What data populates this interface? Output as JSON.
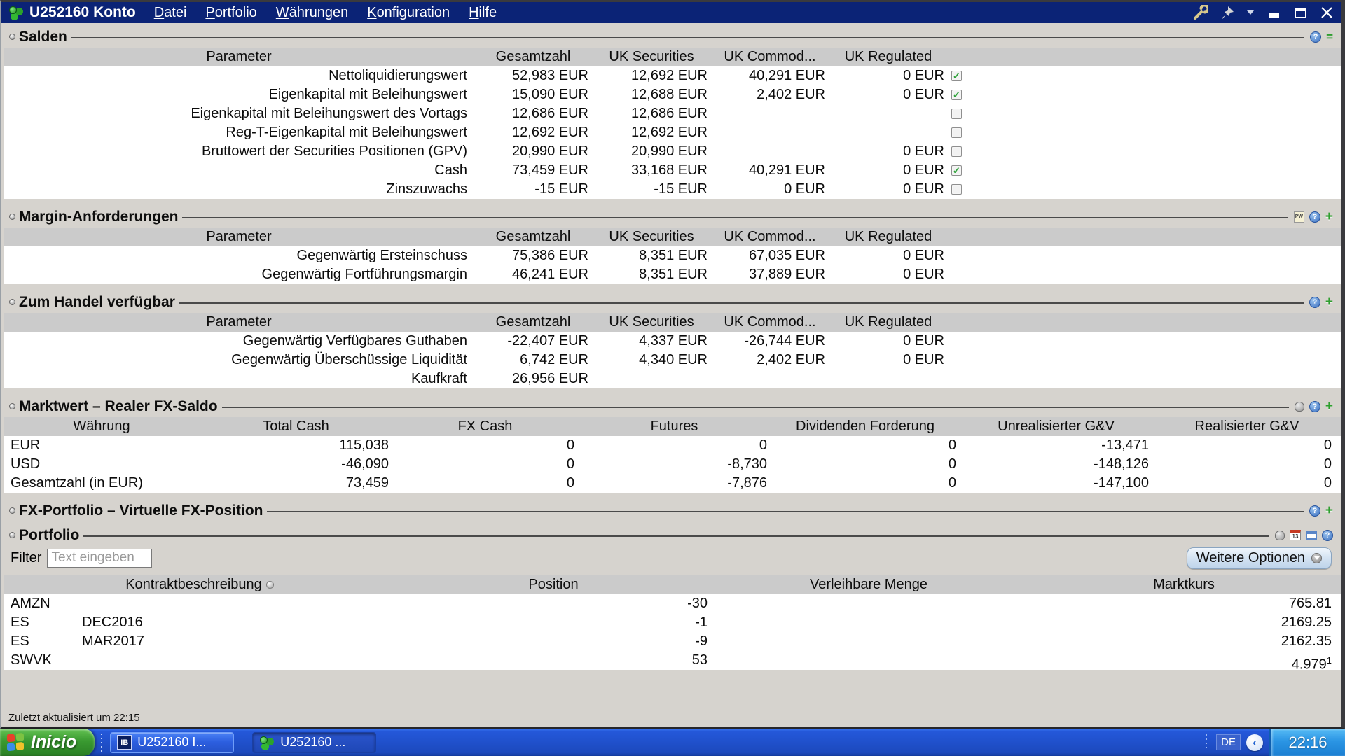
{
  "colors": {
    "titlebar": "#0b2376",
    "taskbar_blue": "#1c49bd",
    "start_green": "#3a9a31",
    "check_green": "#2fa33a",
    "header_gray": "#cbcbcb"
  },
  "window": {
    "title": "U252160 Konto",
    "icon": "coins",
    "menus": [
      {
        "label": "Datei"
      },
      {
        "label": "Portfolio"
      },
      {
        "label": "Währungen"
      },
      {
        "label": "Konfiguration"
      },
      {
        "label": "Hilfe"
      }
    ],
    "controls": [
      "wrench",
      "pin",
      "caret",
      "minimize",
      "maximize",
      "close"
    ]
  },
  "sections": {
    "salden": {
      "title": "Salden",
      "icons": [
        "help",
        "collapse"
      ],
      "headers": [
        "Parameter",
        "Gesamtzahl",
        "UK Securities",
        "UK Commod...",
        "UK Regulated"
      ],
      "rows": [
        {
          "param": "Nettoliquidierungswert",
          "values": [
            "52,983 EUR",
            "12,692 EUR",
            "40,291 EUR",
            "0 EUR"
          ],
          "checked": true
        },
        {
          "param": "Eigenkapital mit Beleihungswert",
          "values": [
            "15,090 EUR",
            "12,688 EUR",
            "2,402 EUR",
            "0 EUR"
          ],
          "checked": true
        },
        {
          "param": "Eigenkapital mit Beleihungswert des Vortags",
          "values": [
            "12,686 EUR",
            "12,686 EUR",
            "",
            ""
          ],
          "checked": false
        },
        {
          "param": "Reg-T-Eigenkapital mit Beleihungswert",
          "values": [
            "12,692 EUR",
            "12,692 EUR",
            "",
            ""
          ],
          "checked": false
        },
        {
          "param": "Bruttowert der Securities Positionen (GPV)",
          "values": [
            "20,990 EUR",
            "20,990 EUR",
            "",
            "0 EUR"
          ],
          "checked": false
        },
        {
          "param": "Cash",
          "values": [
            "73,459 EUR",
            "33,168 EUR",
            "40,291 EUR",
            "0 EUR"
          ],
          "checked": true
        },
        {
          "param": "Zinszuwachs",
          "values": [
            "-15 EUR",
            "-15 EUR",
            "0 EUR",
            "0 EUR"
          ],
          "checked": false
        }
      ]
    },
    "margin": {
      "title": "Margin-Anforderungen",
      "icons": [
        "report",
        "help",
        "add"
      ],
      "headers": [
        "Parameter",
        "Gesamtzahl",
        "UK Securities",
        "UK Commod...",
        "UK Regulated"
      ],
      "rows": [
        {
          "param": "Gegenwärtig Ersteinschuss",
          "values": [
            "75,386 EUR",
            "8,351 EUR",
            "67,035 EUR",
            "0 EUR"
          ],
          "checked": null
        },
        {
          "param": "Gegenwärtig Fortführungsmargin",
          "values": [
            "46,241 EUR",
            "8,351 EUR",
            "37,889 EUR",
            "0 EUR"
          ],
          "checked": null
        }
      ]
    },
    "handel": {
      "title": "Zum Handel verfügbar",
      "icons": [
        "help",
        "add"
      ],
      "headers": [
        "Parameter",
        "Gesamtzahl",
        "UK Securities",
        "UK Commod...",
        "UK Regulated"
      ],
      "rows": [
        {
          "param": "Gegenwärtig Verfügbares Guthaben",
          "values": [
            "-22,407 EUR",
            "4,337 EUR",
            "-26,744 EUR",
            "0 EUR"
          ],
          "checked": null
        },
        {
          "param": "Gegenwärtig Überschüssige Liquidität",
          "values": [
            "6,742 EUR",
            "4,340 EUR",
            "2,402 EUR",
            "0 EUR"
          ],
          "checked": null
        },
        {
          "param": "Kaufkraft",
          "values": [
            "26,956 EUR",
            "",
            "",
            ""
          ],
          "checked": null
        }
      ]
    },
    "marktwert": {
      "title": "Marktwert – Realer FX-Saldo",
      "icons": [
        "hand",
        "help",
        "add"
      ],
      "headers": [
        "Währung",
        "Total Cash",
        "FX Cash",
        "Futures",
        "Dividenden Forderung",
        "Unrealisierter G&V",
        "Realisierter G&V"
      ],
      "rows": [
        {
          "currency": "EUR",
          "values": [
            "115,038",
            "0",
            "0",
            "0",
            "-13,471",
            "0"
          ]
        },
        {
          "currency": "USD",
          "values": [
            "-46,090",
            "0",
            "-8,730",
            "0",
            "-148,126",
            "0"
          ]
        },
        {
          "currency": "Gesamtzahl (in EUR)",
          "values": [
            "73,459",
            "0",
            "-7,876",
            "0",
            "-147,100",
            "0"
          ]
        }
      ]
    },
    "fxportfolio": {
      "title": "FX-Portfolio – Virtuelle FX-Position",
      "icons": [
        "help",
        "add"
      ]
    },
    "portfolio": {
      "title": "Portfolio",
      "icons": [
        "hand",
        "calendar",
        "window",
        "help"
      ],
      "filter_label": "Filter",
      "filter_placeholder": "Text eingeben",
      "more_button": "Weitere Optionen",
      "headers": [
        "Kontraktbeschreibung",
        "Position",
        "Verleihbare Menge",
        "Marktkurs"
      ],
      "rows": [
        {
          "symbol": "AMZN",
          "expiry": "",
          "position": "-30",
          "lendable": "",
          "price": "765.81",
          "price_sup": ""
        },
        {
          "symbol": "ES",
          "expiry": "DEC2016",
          "position": "-1",
          "lendable": "",
          "price": "2169.25",
          "price_sup": ""
        },
        {
          "symbol": "ES",
          "expiry": "MAR2017",
          "position": "-9",
          "lendable": "",
          "price": "2162.35",
          "price_sup": ""
        },
        {
          "symbol": "SWVK",
          "expiry": "",
          "position": "53",
          "lendable": "",
          "price": "4.979",
          "price_sup": "1"
        }
      ]
    }
  },
  "statusbar": {
    "text": "Zuletzt aktualisiert um 22:15"
  },
  "taskbar": {
    "start_label": "Inicio",
    "tasks": [
      {
        "label": "U252160 I...",
        "icon": "ib",
        "active": false
      },
      {
        "label": "U252160 ...",
        "icon": "coins",
        "active": true
      }
    ],
    "lang": "DE",
    "clock": "22:16"
  }
}
